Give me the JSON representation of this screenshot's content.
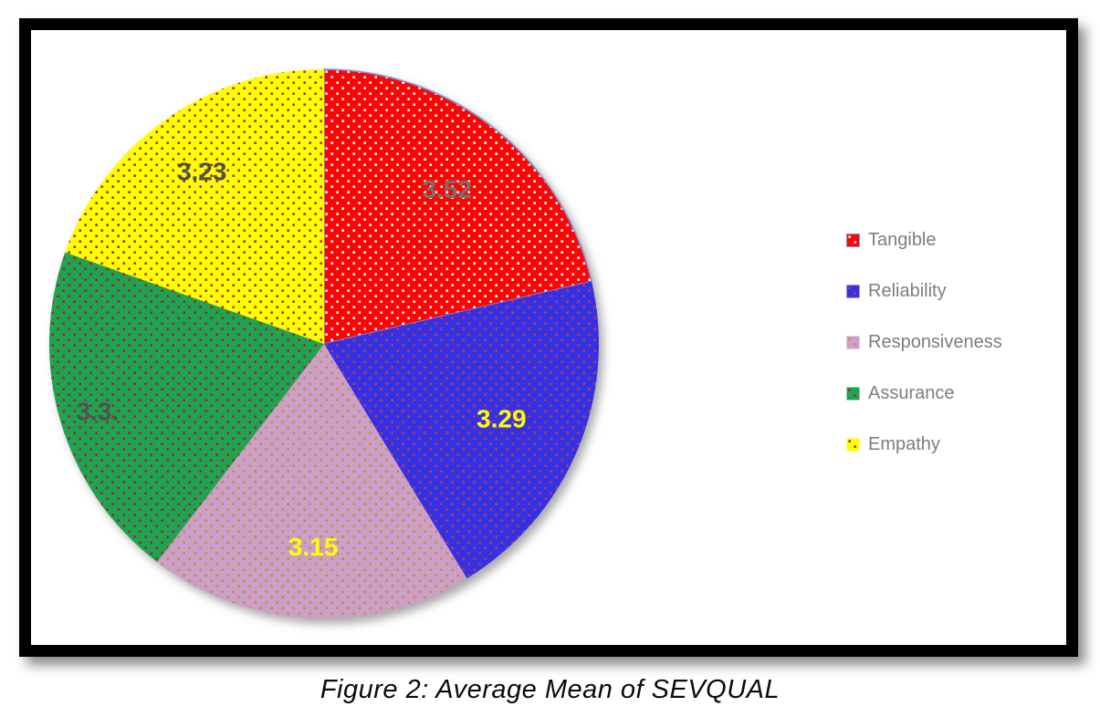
{
  "figure": {
    "caption": "Figure 2: Average Mean of SEVQUAL"
  },
  "chart_data": {
    "type": "pie",
    "title": "",
    "categories": [
      "Tangible",
      "Reliability",
      "Responsiveness",
      "Assurance",
      "Empathy"
    ],
    "values": [
      3.52,
      3.29,
      3.15,
      3.3,
      3.23
    ],
    "value_labels": [
      "3.52",
      "3.29",
      "3.15",
      "3.3.",
      "3.23"
    ],
    "slice_colors": [
      "#fe0505",
      "#3431e4",
      "#c9a0c9",
      "#1ea352",
      "#ffff00"
    ],
    "dot_pattern_colors": [
      "#ffffff",
      "#b43a5a",
      "#e0813a",
      "#a82424",
      "#b4281e"
    ],
    "value_label_colors": [
      "#777070",
      "#ffff00",
      "#ffff00",
      "#515151",
      "#4f4f4f"
    ],
    "slice_border_colors": [
      "#8494dc",
      null,
      null,
      null,
      null
    ],
    "legend_position": "right",
    "start_angle_deg": 0,
    "direction": "clockwise"
  }
}
